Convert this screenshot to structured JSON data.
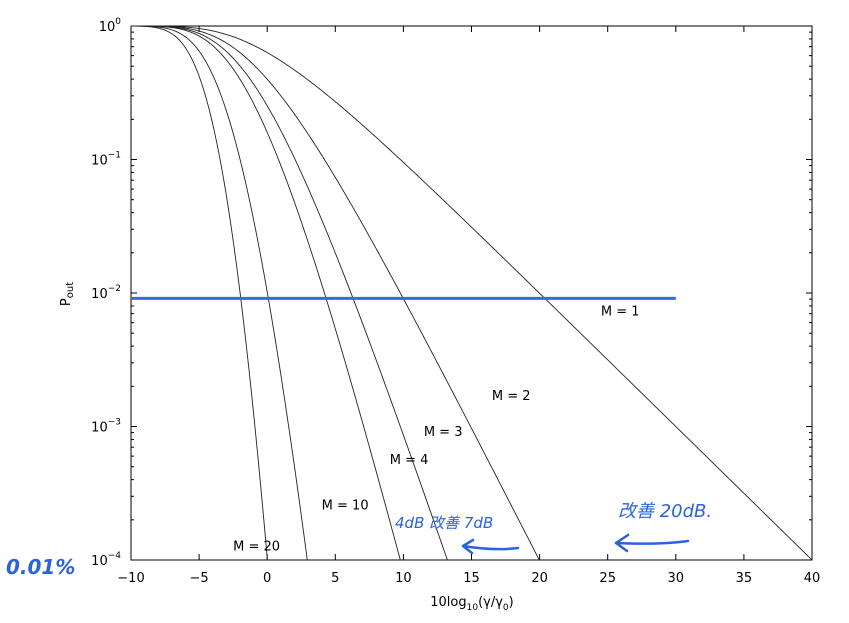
{
  "chart_data": {
    "type": "line",
    "title": "",
    "xlabel": {
      "base": "10log",
      "sub": "10",
      "arg": "(γ/γ",
      "argsub": "0",
      "close": ")"
    },
    "ylabel": {
      "base": "P",
      "sub": "out"
    },
    "xlim": [
      -10,
      40
    ],
    "ylim_log10": [
      -4,
      0
    ],
    "x_ticks": [
      -10,
      -5,
      0,
      5,
      10,
      15,
      20,
      25,
      30,
      35,
      40
    ],
    "x_tick_labels": [
      "−10",
      "−5",
      "0",
      "5",
      "10",
      "15",
      "20",
      "25",
      "30",
      "35",
      "40"
    ],
    "y_ticks": [
      {
        "exp": 0,
        "base": "10",
        "sup": "0"
      },
      {
        "exp": -1,
        "base": "10",
        "sup": "−1"
      },
      {
        "exp": -2,
        "base": "10",
        "sup": "−2"
      },
      {
        "exp": -3,
        "base": "10",
        "sup": "−3"
      },
      {
        "exp": -4,
        "base": "10",
        "sup": "−4"
      }
    ],
    "series": [
      {
        "name": "M = 1",
        "M": 1,
        "label": "M = 1",
        "label_at": [
          24.5,
          -2.17
        ]
      },
      {
        "name": "M = 2",
        "M": 2,
        "label": "M = 2",
        "label_at": [
          16.5,
          -2.8
        ]
      },
      {
        "name": "M = 3",
        "M": 3,
        "label": "M = 3",
        "label_at": [
          11.5,
          -3.07
        ]
      },
      {
        "name": "M = 4",
        "M": 4,
        "label": "M = 4",
        "label_at": [
          9.0,
          -3.28
        ]
      },
      {
        "name": "M = 10",
        "M": 10,
        "label": "M = 10",
        "label_at": [
          4.0,
          -3.62
        ]
      },
      {
        "name": "M = 20",
        "M": 20,
        "label": "M = 20",
        "label_at": [
          -2.5,
          -3.93
        ]
      }
    ],
    "reference_line": {
      "y_log10": -2.04,
      "x_start": -10,
      "x_end": 30,
      "color": "#2f6fdc"
    },
    "annotations": {
      "left_note": "0.01%",
      "gain_4": "4dB 改善 7dB",
      "gain_20": "改善 20dB."
    }
  }
}
